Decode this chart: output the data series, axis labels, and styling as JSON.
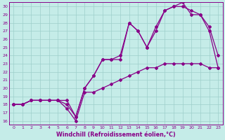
{
  "xlabel": "Windchill (Refroidissement éolien,°C)",
  "xlim": [
    -0.5,
    23.5
  ],
  "ylim": [
    15.5,
    30.5
  ],
  "xticks": [
    0,
    1,
    2,
    3,
    4,
    5,
    6,
    7,
    8,
    9,
    10,
    11,
    12,
    13,
    14,
    15,
    16,
    17,
    18,
    19,
    20,
    21,
    22,
    23
  ],
  "yticks": [
    16,
    17,
    18,
    19,
    20,
    21,
    22,
    23,
    24,
    25,
    26,
    27,
    28,
    29,
    30
  ],
  "bg_color": "#c5ece8",
  "grid_color": "#9ecfca",
  "line_color": "#880088",
  "line1_x": [
    0,
    1,
    2,
    3,
    4,
    5,
    6,
    7,
    8,
    9,
    10,
    11,
    12,
    13,
    14,
    15,
    16,
    17,
    18,
    19,
    20,
    21,
    22,
    23
  ],
  "line1_y": [
    18,
    18,
    18.5,
    18.5,
    18.5,
    18.5,
    17.5,
    16.0,
    19.5,
    19.5,
    20.0,
    20.5,
    21.0,
    21.5,
    22.0,
    22.5,
    22.5,
    23.0,
    23.0,
    23.0,
    23.0,
    23.0,
    22.5,
    22.5
  ],
  "line2_x": [
    0,
    1,
    2,
    3,
    4,
    5,
    6,
    7,
    8,
    9,
    10,
    11,
    12,
    13,
    14,
    15,
    16,
    17,
    18,
    19,
    20,
    21,
    22,
    23
  ],
  "line2_y": [
    18,
    18,
    18.5,
    18.5,
    18.5,
    18.5,
    18.0,
    16.5,
    20.0,
    21.5,
    23.5,
    23.5,
    23.5,
    28.0,
    27.0,
    25.0,
    27.0,
    29.5,
    30.0,
    30.0,
    29.5,
    29.0,
    27.0,
    22.5
  ],
  "line3_x": [
    0,
    1,
    2,
    3,
    4,
    5,
    6,
    7,
    8,
    9,
    10,
    11,
    12,
    13,
    14,
    15,
    16,
    17,
    18,
    19,
    20,
    21,
    22,
    23
  ],
  "line3_y": [
    18,
    18,
    18.5,
    18.5,
    18.5,
    18.5,
    18.5,
    16.5,
    20.0,
    21.5,
    23.5,
    23.5,
    24.0,
    28.0,
    27.0,
    25.0,
    27.5,
    29.5,
    30.0,
    30.5,
    29.0,
    29.0,
    27.5,
    24.0
  ],
  "marker": "D",
  "markersize": 2.0,
  "linewidth": 0.9,
  "tick_fontsize": 4.5,
  "label_fontsize": 5.8
}
